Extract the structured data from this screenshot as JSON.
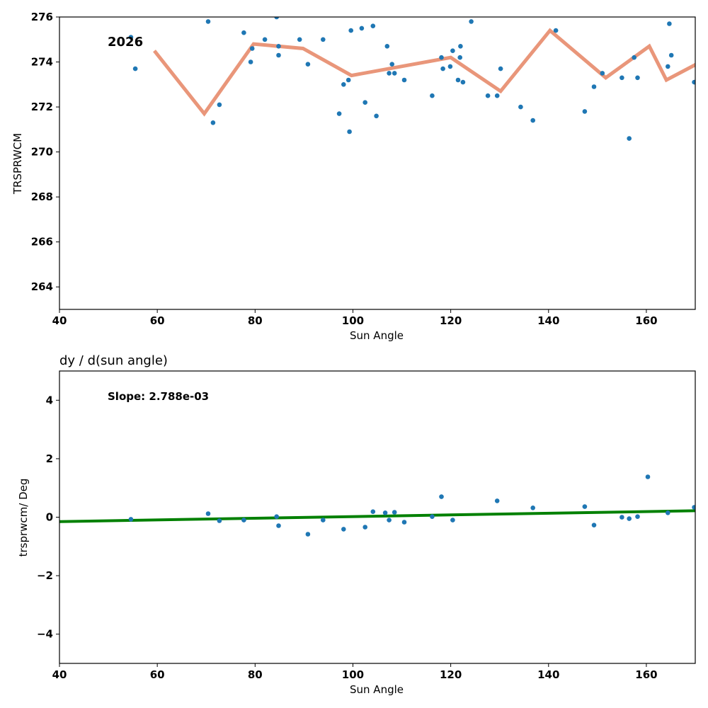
{
  "chart_data": [
    {
      "type": "scatter",
      "title": "",
      "xlabel": "Sun Angle",
      "ylabel": "TRSPRWCM",
      "xlim": [
        40,
        170
      ],
      "ylim": [
        263,
        276
      ],
      "xticks": [
        40,
        60,
        80,
        100,
        120,
        140,
        160
      ],
      "yticks": [
        264,
        266,
        268,
        270,
        272,
        274,
        276
      ],
      "grid": false,
      "annotation": "2026",
      "colors": {
        "points": "#1f77b4",
        "line": "#e9967a"
      },
      "series": [
        {
          "name": "observations",
          "kind": "scatter",
          "x": [
            54.6,
            55.5,
            70.4,
            71.4,
            72.7,
            77.7,
            79.1,
            79.4,
            82.0,
            84.4,
            84.8,
            84.8,
            89.1,
            90.8,
            93.9,
            97.2,
            98.1,
            99.1,
            99.3,
            99.6,
            101.8,
            102.5,
            104.1,
            104.8,
            107.0,
            107.4,
            108.0,
            108.5,
            110.5,
            116.2,
            118.1,
            118.4,
            119.9,
            120.4,
            121.5,
            121.9,
            122.0,
            122.5,
            124.2,
            127.6,
            129.5,
            130.2,
            134.3,
            136.8,
            141.5,
            147.4,
            149.3,
            151.0,
            155.0,
            156.5,
            157.5,
            158.2,
            164.4,
            164.7,
            165.1,
            169.8
          ],
          "y": [
            275.1,
            273.7,
            275.8,
            271.3,
            272.1,
            275.3,
            274.0,
            274.6,
            275.0,
            276.0,
            274.3,
            274.7,
            275.0,
            273.9,
            275.0,
            271.7,
            273.0,
            273.2,
            270.9,
            275.4,
            275.5,
            272.2,
            275.6,
            271.6,
            274.7,
            273.5,
            273.9,
            273.5,
            273.2,
            272.5,
            274.2,
            273.7,
            273.8,
            274.5,
            273.2,
            274.2,
            274.7,
            273.1,
            275.8,
            272.5,
            272.5,
            273.7,
            272.0,
            271.4,
            275.4,
            271.8,
            272.9,
            273.5,
            273.3,
            270.6,
            274.2,
            273.3,
            273.8,
            275.7,
            274.3,
            273.1
          ]
        },
        {
          "name": "binned mean",
          "kind": "line",
          "x": [
            59.4,
            69.6,
            79.7,
            89.8,
            99.7,
            120.0,
            130.2,
            140.3,
            151.7,
            160.6,
            164.1,
            171.1
          ],
          "y": [
            274.5,
            271.7,
            274.8,
            274.6,
            273.4,
            274.2,
            272.7,
            275.4,
            273.3,
            274.7,
            273.2,
            274.0
          ]
        }
      ]
    },
    {
      "type": "scatter",
      "title": "dy / d(sun angle)",
      "xlabel": "Sun Angle",
      "ylabel": "trsprwcm/ Deg",
      "xlim": [
        40,
        170
      ],
      "ylim": [
        -5,
        5
      ],
      "xticks": [
        40,
        60,
        80,
        100,
        120,
        140,
        160
      ],
      "yticks": [
        -4,
        -2,
        0,
        2,
        4
      ],
      "ytick_labels": [
        "−4",
        "−2",
        "0",
        "2",
        "4"
      ],
      "grid": false,
      "annotation": "Slope: 2.788e-03",
      "colors": {
        "points": "#1f77b4",
        "line": "#008000"
      },
      "series": [
        {
          "name": "derivative",
          "kind": "scatter",
          "x": [
            54.6,
            70.4,
            72.7,
            77.7,
            84.4,
            84.8,
            90.8,
            93.9,
            98.1,
            102.5,
            104.1,
            106.6,
            107.4,
            108.5,
            110.5,
            116.2,
            118.1,
            120.4,
            129.5,
            136.8,
            147.4,
            149.3,
            155.0,
            156.5,
            158.2,
            160.3,
            164.4,
            169.8
          ],
          "y": [
            -0.07,
            0.12,
            -0.12,
            -0.1,
            0.02,
            -0.29,
            -0.58,
            -0.1,
            -0.41,
            -0.34,
            0.19,
            0.15,
            -0.1,
            0.17,
            -0.17,
            0.02,
            0.7,
            -0.1,
            0.56,
            0.32,
            0.36,
            -0.27,
            0.0,
            -0.05,
            0.02,
            1.38,
            0.15,
            0.34
          ]
        },
        {
          "name": "linear fit",
          "kind": "line",
          "x": [
            40,
            170
          ],
          "y": [
            -0.15,
            0.22
          ]
        }
      ]
    }
  ]
}
